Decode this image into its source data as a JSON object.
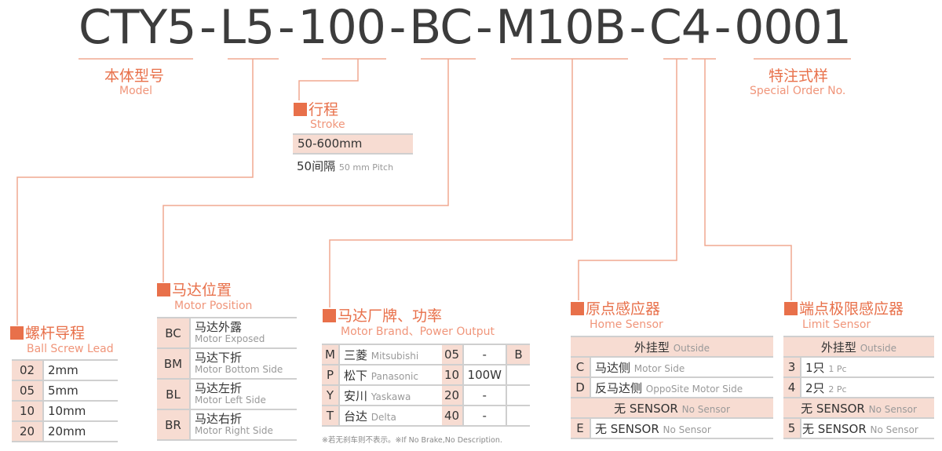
{
  "code": {
    "segments": [
      "CTY5",
      "-",
      "L5",
      "-",
      "100",
      "-",
      "BC",
      "-",
      "M10B",
      "-",
      "C4",
      "-",
      "0001"
    ]
  },
  "model": {
    "cn": "本体型号",
    "en": "Model"
  },
  "special": {
    "cn": "特注式样",
    "en": "Special Order No."
  },
  "stroke": {
    "cn": "行程",
    "en": "Stroke",
    "range": "50-600mm",
    "pitch_cn": "50间隔",
    "pitch_en": "50 mm Pitch"
  },
  "lead": {
    "cn": "螺杆导程",
    "en": "Ball Screw Lead",
    "rows": [
      {
        "code": "02",
        "value": "2mm"
      },
      {
        "code": "05",
        "value": "5mm"
      },
      {
        "code": "10",
        "value": "10mm"
      },
      {
        "code": "20",
        "value": "20mm"
      }
    ]
  },
  "position": {
    "cn": "马达位置",
    "en": "Motor Position",
    "rows": [
      {
        "code": "BC",
        "cn": "马达外露",
        "en": "Motor Exposed"
      },
      {
        "code": "BM",
        "cn": "马达下折",
        "en": "Motor Bottom Side"
      },
      {
        "code": "BL",
        "cn": "马达左折",
        "en": "Motor Left Side"
      },
      {
        "code": "BR",
        "cn": "马达右折",
        "en": "Motor Right Side"
      }
    ]
  },
  "brand": {
    "cn": "马达厂牌、功率",
    "en": "Motor Brand、Power Output",
    "rows": [
      {
        "code": "M",
        "cn": "三菱",
        "en": "Mitsubishi",
        "pcode": "05",
        "power": "-",
        "brake": "B"
      },
      {
        "code": "P",
        "cn": "松下",
        "en": "Panasonic",
        "pcode": "10",
        "power": "100W",
        "brake": ""
      },
      {
        "code": "Y",
        "cn": "安川",
        "en": "Yaskawa",
        "pcode": "20",
        "power": "-",
        "brake": ""
      },
      {
        "code": "T",
        "cn": "台达",
        "en": "Delta",
        "pcode": "40",
        "power": "-",
        "brake": ""
      }
    ],
    "note": "※若无刹车则不表示。※If No Brake,No Description."
  },
  "home": {
    "cn": "原点感应器",
    "en": "Home Sensor",
    "outside_cn": "外挂型",
    "outside_en": "Outside",
    "rows": [
      {
        "code": "C",
        "cn": "马达侧",
        "en": "Motor Side"
      },
      {
        "code": "D",
        "cn": "反马达侧",
        "en": "OppoSite Motor Side"
      }
    ],
    "none_cn": "无 SENSOR",
    "none_en": "No Sensor",
    "e_code": "E",
    "e_cn": "无 SENSOR",
    "e_en": "No Sensor"
  },
  "limit": {
    "cn": "端点极限感应器",
    "en": "Limit Sensor",
    "outside_cn": "外挂型",
    "outside_en": "Outside",
    "rows": [
      {
        "code": "3",
        "cn": "1只",
        "en": "1 Pc"
      },
      {
        "code": "4",
        "cn": "2只",
        "en": "2 Pc"
      }
    ],
    "none_cn": "无 SENSOR",
    "none_en": "No Sensor",
    "e_code": "5",
    "e_cn": "无 SENSOR",
    "e_en": "No Sensor"
  },
  "colors": {
    "accent": "#e8704a",
    "english": "#f0957a",
    "fill": "#f7dcd2",
    "line": "#f0a890"
  }
}
